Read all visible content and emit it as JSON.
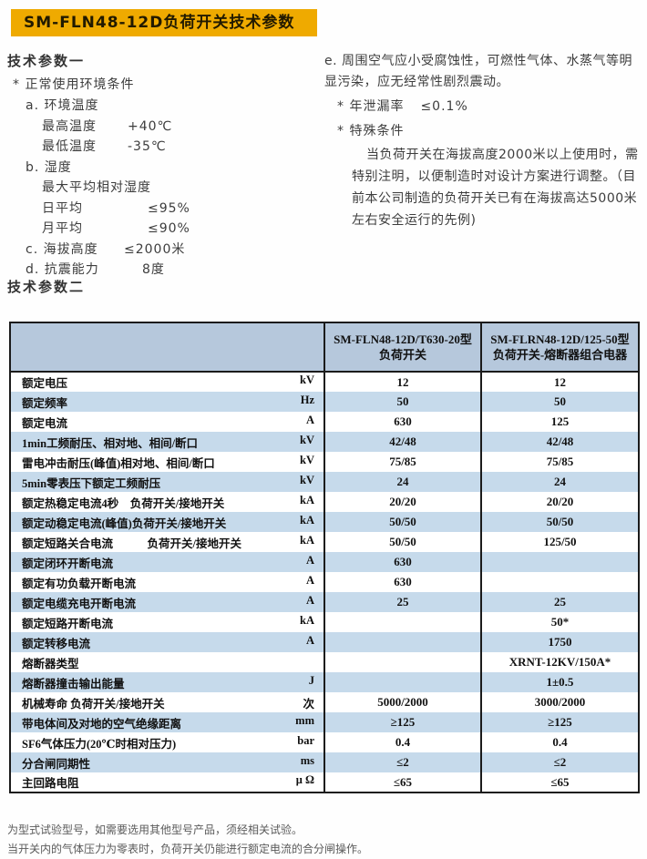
{
  "title": "SM-FLN48-12D负荷开关技术参数",
  "section1": {
    "heading": "技术参数一",
    "bullet": "* 正常使用环境条件",
    "items": [
      {
        "indent": 1,
        "label": "a. 环境温度",
        "value": ""
      },
      {
        "indent": 2,
        "label": "最高温度",
        "value": "+40℃"
      },
      {
        "indent": 2,
        "label": "最低温度",
        "value": "-35℃"
      },
      {
        "indent": 1,
        "label": "b. 湿度",
        "value": ""
      },
      {
        "indent": 2,
        "label": "最大平均相对湿度",
        "value": ""
      },
      {
        "indent": 2,
        "label": "日平均",
        "value": "≤95%"
      },
      {
        "indent": 2,
        "label": "月平均",
        "value": "≤90%"
      },
      {
        "indent": 1,
        "label": "c. 海拔高度",
        "value": "≤2000米"
      },
      {
        "indent": 1,
        "label": "d. 抗震能力",
        "value": "8度"
      }
    ]
  },
  "section1_right": {
    "para_e": "e. 周围空气应小受腐蚀性，可燃性气体、水蒸气等明显污染，应无经常性剧烈震动。",
    "leak_label": "* 年泄漏率",
    "leak_value": "≤0.1%",
    "special_label": "* 特殊条件",
    "special_para": "当负荷开关在海拔高度2000米以上使用时，需特别注明，以便制造时对设计方案进行调整。（目前本公司制造的负荷开关已有在海拔高达5000米左右安全运行的先例)"
  },
  "section2": {
    "heading": "技术参数二",
    "table": {
      "col2_line1": "SM-FLN48-12D/T630-20型",
      "col2_line2": "负荷开关",
      "col3_line1": "SM-FLRN48-12D/125-50型",
      "col3_line2": "负荷开关-熔断器组合电器",
      "rows": [
        {
          "label": "额定电压",
          "unit": "kV",
          "v1": "12",
          "v2": "12"
        },
        {
          "label": "额定频率",
          "unit": "Hz",
          "v1": "50",
          "v2": "50"
        },
        {
          "label": "额定电流",
          "unit": "A",
          "v1": "630",
          "v2": "125"
        },
        {
          "label": "1min工频耐压、相对地、相间/断口",
          "unit": "kV",
          "v1": "42/48",
          "v2": "42/48"
        },
        {
          "label": "雷电冲击耐压(峰值)相对地、相间/断口",
          "unit": "kV",
          "v1": "75/85",
          "v2": "75/85"
        },
        {
          "label": "5min零表压下额定工频耐压",
          "unit": "kV",
          "v1": "24",
          "v2": "24"
        },
        {
          "label": "额定热稳定电流4秒　负荷开关/接地开关",
          "unit": "kA",
          "v1": "20/20",
          "v2": "20/20"
        },
        {
          "label": "额定动稳定电流(峰值)负荷开关/接地开关",
          "unit": "kA",
          "v1": "50/50",
          "v2": "50/50"
        },
        {
          "label": "额定短路关合电流　　　负荷开关/接地开关",
          "unit": "kA",
          "v1": "50/50",
          "v2": "125/50"
        },
        {
          "label": "额定闭环开断电流",
          "unit": "A",
          "v1": "630",
          "v2": ""
        },
        {
          "label": "额定有功负载开断电流",
          "unit": "A",
          "v1": "630",
          "v2": ""
        },
        {
          "label": "额定电缆充电开断电流",
          "unit": "A",
          "v1": "25",
          "v2": "25"
        },
        {
          "label": "额定短路开断电流",
          "unit": "kA",
          "v1": "",
          "v2": "50*"
        },
        {
          "label": "额定转移电流",
          "unit": "A",
          "v1": "",
          "v2": "1750"
        },
        {
          "label": "熔断器类型",
          "unit": "",
          "v1": "",
          "v2": "XRNT-12KV/150A*"
        },
        {
          "label": "熔断器撞击输出能量",
          "unit": "J",
          "v1": "",
          "v2": "1±0.5"
        },
        {
          "label": "机械寿命 负荷开关/接地开关",
          "unit": "次",
          "v1": "5000/2000",
          "v2": "3000/2000"
        },
        {
          "label": "带电体间及对地的空气绝缘距离",
          "unit": "mm",
          "v1": "≥125",
          "v2": "≥125"
        },
        {
          "label": "SF6气体压力(20℃时相对压力)",
          "unit": "bar",
          "v1": "0.4",
          "v2": "0.4"
        },
        {
          "label": "分合闸同期性",
          "unit": "ms",
          "v1": "≤2",
          "v2": "≤2"
        },
        {
          "label": "主回路电阻",
          "unit": "μ Ω",
          "v1": "≤65",
          "v2": "≤65"
        }
      ]
    }
  },
  "footnotes": [
    "为型式试验型号，如需要选用其他型号产品，须经相关试验。",
    "当开关内的气体压力为零表时，负荷开关仍能进行额定电流的合分闸操作。"
  ],
  "colors": {
    "title_bar": "#efaa00",
    "table_header": "#b6c8dc",
    "table_row_alt": "#c6daeb"
  }
}
